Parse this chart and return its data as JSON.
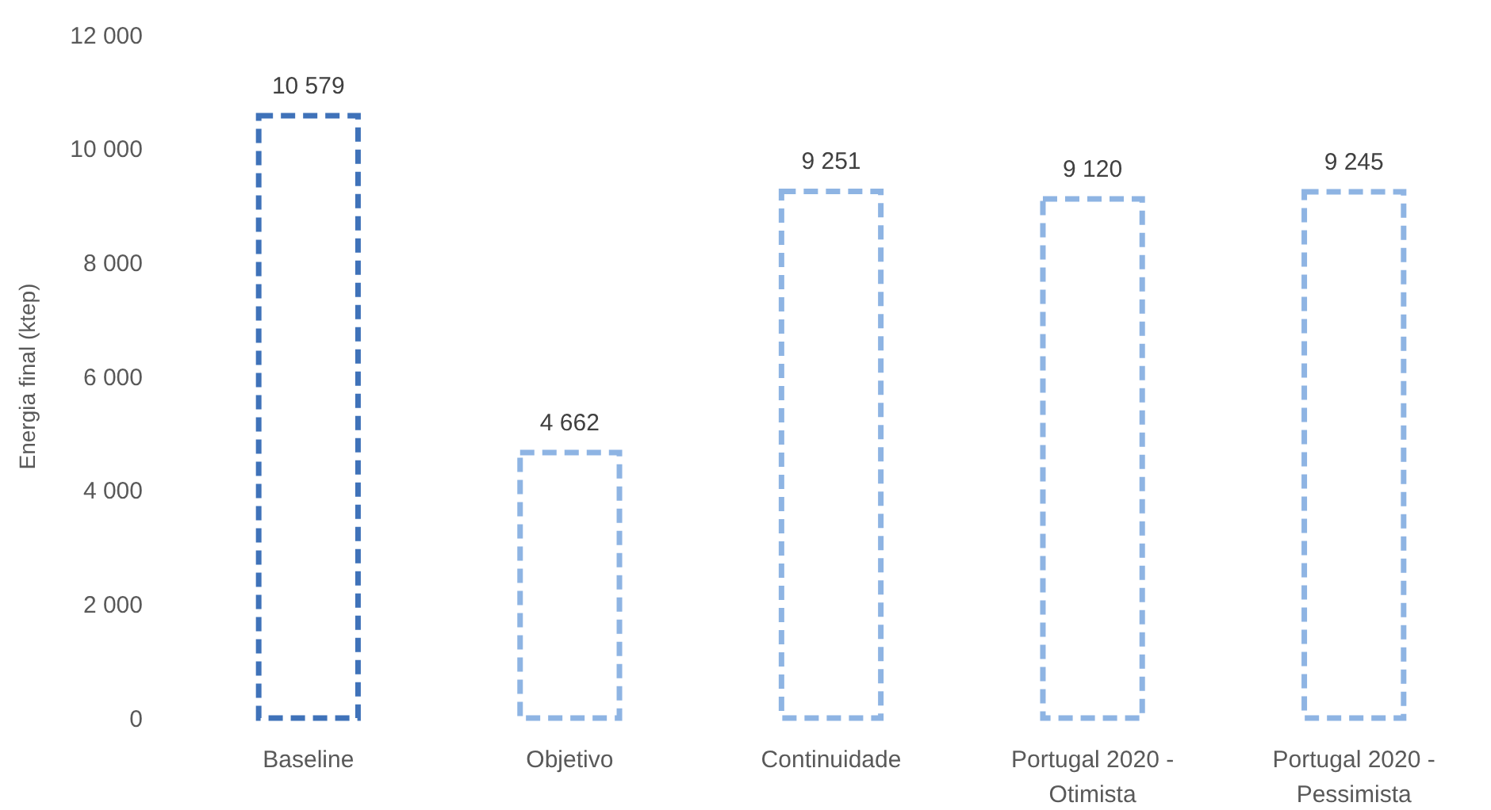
{
  "chart_data": {
    "type": "bar",
    "ylabel": "Energia final (ktep)",
    "categories": [
      "Baseline",
      "Objetivo",
      "Continuidade",
      "Portugal 2020 - Otimista",
      "Portugal 2020 - Pessimista"
    ],
    "values": [
      10579,
      4662,
      9251,
      9120,
      9245
    ],
    "value_labels": [
      "10 579",
      "4 662",
      "9 251",
      "9 120",
      "9 245"
    ],
    "colors": [
      "#3f72b9",
      "#8eb4e3",
      "#8eb4e3",
      "#8eb4e3",
      "#8eb4e3"
    ],
    "line_style": "dashed",
    "ylim": [
      0,
      12000
    ],
    "yticks": [
      0,
      {
        "value": 2000,
        "label": "2 000"
      },
      {
        "value": 4000,
        "label": "4 000"
      },
      {
        "value": 6000,
        "label": "6 000"
      },
      {
        "value": 8000,
        "label": "8 000"
      },
      {
        "value": 10000,
        "label": "10 000"
      },
      {
        "value": 12000,
        "label": "12 000"
      }
    ],
    "grid": false
  }
}
